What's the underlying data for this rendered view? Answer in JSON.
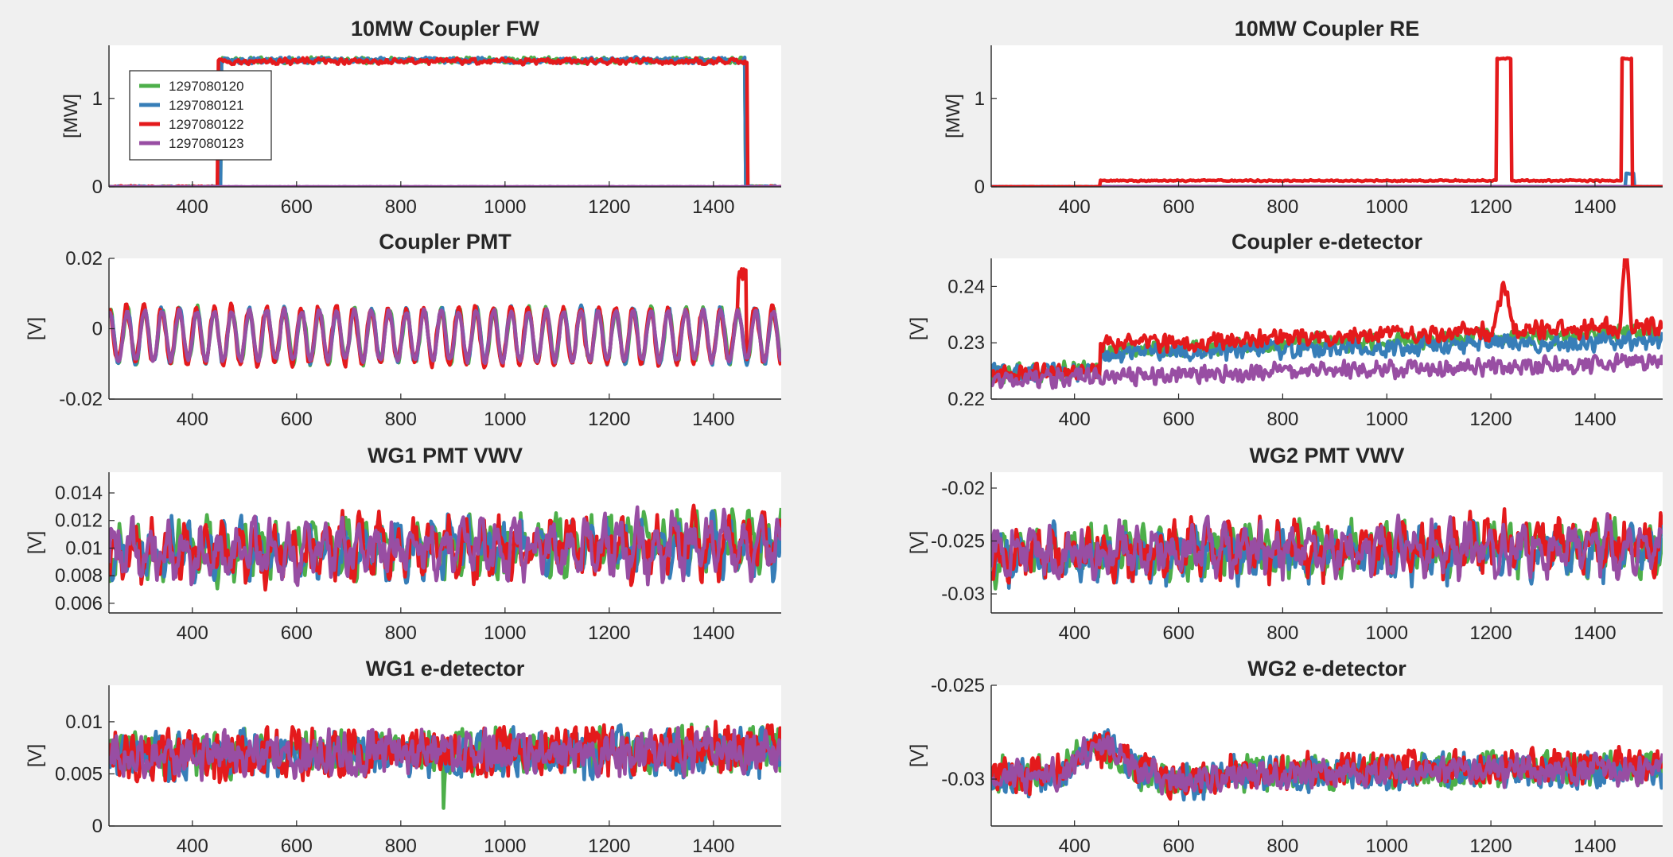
{
  "figure": {
    "colors": {
      "s1297080120": "#4daf4a",
      "s1297080121": "#377eb8",
      "s1297080122": "#e41a1c",
      "s1297080123": "#984ea3"
    }
  },
  "chart_data": [
    {
      "id": "p1",
      "type": "line",
      "title": "10MW Coupler FW",
      "ylabel": "[MW]",
      "xlim": [
        240,
        1530
      ],
      "ylim": [
        0,
        1.6
      ],
      "xticks": [
        400,
        600,
        800,
        1000,
        1200,
        1400
      ],
      "xtick_labels": [
        "400",
        "600",
        "800",
        "1000",
        "1200",
        "1400"
      ],
      "yticks": [
        0,
        1
      ],
      "ytick_labels": [
        "0",
        "1"
      ],
      "grid": false,
      "legend": "top-left",
      "series": [
        {
          "name": "1297080120",
          "color": "#4daf4a",
          "shape": "pulse",
          "params": {
            "x0": 240,
            "x1": 1530,
            "base": 0,
            "pulses": [
              [
                455,
                1460,
                1.43
              ]
            ],
            "noise": 0.04,
            "period": 0
          }
        },
        {
          "name": "1297080121",
          "color": "#377eb8",
          "shape": "pulse",
          "params": {
            "x0": 240,
            "x1": 1530,
            "base": 0,
            "pulses": [
              [
                455,
                1460,
                1.43
              ]
            ],
            "noise": 0.04,
            "period": 0
          }
        },
        {
          "name": "1297080122",
          "color": "#e41a1c",
          "shape": "pulse",
          "params": {
            "x0": 240,
            "x1": 1530,
            "base": 0,
            "pulses": [
              [
                450,
                1465,
                1.42
              ]
            ],
            "noise": 0.04,
            "period": 0
          }
        },
        {
          "name": "1297080123",
          "color": "#984ea3",
          "shape": "pulse",
          "params": {
            "x0": 240,
            "x1": 1530,
            "base": 0,
            "pulses": [],
            "noise": 0.005,
            "period": 0
          }
        }
      ]
    },
    {
      "id": "p2",
      "type": "line",
      "title": "10MW Coupler RE",
      "ylabel": "[MW]",
      "xlim": [
        240,
        1530
      ],
      "ylim": [
        0,
        1.6
      ],
      "xticks": [
        400,
        600,
        800,
        1000,
        1200,
        1400
      ],
      "xtick_labels": [
        "400",
        "600",
        "800",
        "1000",
        "1200",
        "1400"
      ],
      "yticks": [
        0,
        1
      ],
      "ytick_labels": [
        "0",
        "1"
      ],
      "grid": false,
      "series": [
        {
          "name": "1297080120",
          "color": "#4daf4a",
          "shape": "pulse",
          "params": {
            "x0": 240,
            "x1": 1530,
            "base": 0,
            "pulses": [],
            "noise": 0.005,
            "period": 0
          }
        },
        {
          "name": "1297080121",
          "color": "#377eb8",
          "shape": "pulse",
          "params": {
            "x0": 240,
            "x1": 1530,
            "base": 0,
            "pulses": [
              [
                1460,
                1475,
                0.15
              ]
            ],
            "noise": 0.005,
            "period": 0
          }
        },
        {
          "name": "1297080123",
          "color": "#984ea3",
          "shape": "pulse",
          "params": {
            "x0": 240,
            "x1": 1530,
            "base": 0,
            "pulses": [],
            "noise": 0.005,
            "period": 0
          }
        },
        {
          "name": "1297080122",
          "color": "#e41a1c",
          "shape": "pulse",
          "params": {
            "x0": 240,
            "x1": 1530,
            "base": 0,
            "pulses": [
              [
                450,
                1210,
                0.07
              ],
              [
                1212,
                1240,
                1.45
              ],
              [
                1240,
                1452,
                0.07
              ],
              [
                1452,
                1470,
                1.45
              ]
            ],
            "noise": 0.01,
            "period": 0
          }
        }
      ]
    },
    {
      "id": "p3",
      "type": "line",
      "title": "Coupler PMT",
      "ylabel": "[V]",
      "xlim": [
        240,
        1530
      ],
      "ylim": [
        -0.02,
        0.02
      ],
      "xticks": [
        400,
        600,
        800,
        1000,
        1200,
        1400
      ],
      "xtick_labels": [
        "400",
        "600",
        "800",
        "1000",
        "1200",
        "1400"
      ],
      "yticks": [
        -0.02,
        0,
        0.02
      ],
      "ytick_labels": [
        "-0.02",
        "0",
        "0.02"
      ],
      "grid": false,
      "series": [
        {
          "name": "1297080120",
          "color": "#4daf4a",
          "shape": "sine",
          "params": {
            "x0": 240,
            "x1": 1530,
            "mean": -0.002,
            "amp": 0.0075,
            "period": 33.5,
            "phase": 0.2,
            "noise": 0.0015,
            "spikes": []
          }
        },
        {
          "name": "1297080121",
          "color": "#377eb8",
          "shape": "sine",
          "params": {
            "x0": 240,
            "x1": 1530,
            "mean": -0.002,
            "amp": 0.0075,
            "period": 33.5,
            "phase": 0.35,
            "noise": 0.0015,
            "spikes": []
          }
        },
        {
          "name": "1297080122",
          "color": "#e41a1c",
          "shape": "sine",
          "params": {
            "x0": 240,
            "x1": 1530,
            "mean": -0.002,
            "amp": 0.0078,
            "period": 33.5,
            "phase": 0.5,
            "noise": 0.0018,
            "spikes": [
              [
                1448,
                1462,
                0.017
              ]
            ]
          }
        },
        {
          "name": "1297080123",
          "color": "#984ea3",
          "shape": "sine",
          "params": {
            "x0": 240,
            "x1": 1530,
            "mean": -0.002,
            "amp": 0.007,
            "period": 33.5,
            "phase": 0.3,
            "noise": 0.001,
            "spikes": []
          }
        }
      ]
    },
    {
      "id": "p4",
      "type": "line",
      "title": "Coupler e-detector",
      "ylabel": "[V]",
      "xlim": [
        240,
        1530
      ],
      "ylim": [
        0.22,
        0.245
      ],
      "xticks": [
        400,
        600,
        800,
        1000,
        1200,
        1400
      ],
      "xtick_labels": [
        "400",
        "600",
        "800",
        "1000",
        "1200",
        "1400"
      ],
      "yticks": [
        0.22,
        0.23,
        0.24
      ],
      "ytick_labels": [
        "0.22",
        "0.23",
        "0.24"
      ],
      "grid": false,
      "series": [
        {
          "name": "1297080120",
          "color": "#4daf4a",
          "shape": "trend",
          "params": {
            "x0": 240,
            "x1": 1530,
            "y0": 0.2245,
            "y1": 0.2285,
            "step_x": 450,
            "step": 0.0035,
            "noise": 0.0012,
            "period": 0,
            "amp": 0,
            "spikes": []
          }
        },
        {
          "name": "1297080121",
          "color": "#377eb8",
          "shape": "trend",
          "params": {
            "x0": 240,
            "x1": 1530,
            "y0": 0.2245,
            "y1": 0.2275,
            "step_x": 450,
            "step": 0.003,
            "noise": 0.0012,
            "period": 0,
            "amp": 0,
            "spikes": []
          }
        },
        {
          "name": "1297080122",
          "color": "#e41a1c",
          "shape": "trend",
          "params": {
            "x0": 240,
            "x1": 1530,
            "y0": 0.2245,
            "y1": 0.2285,
            "step_x": 450,
            "step": 0.0045,
            "noise": 0.0012,
            "period": 0,
            "amp": 0,
            "spikes": [
              [
                1205,
                1245,
                0.0085
              ],
              [
                1448,
                1470,
                0.016
              ]
            ]
          }
        },
        {
          "name": "1297080123",
          "color": "#984ea3",
          "shape": "trend",
          "params": {
            "x0": 240,
            "x1": 1530,
            "y0": 0.2235,
            "y1": 0.2265,
            "step_x": 0,
            "step": 0,
            "noise": 0.0012,
            "period": 0,
            "amp": 0,
            "spikes": []
          }
        }
      ]
    },
    {
      "id": "p5",
      "type": "line",
      "title": "WG1 PMT VWV",
      "ylabel": "[V]",
      "xlim": [
        240,
        1530
      ],
      "ylim": [
        0.0053,
        0.0155
      ],
      "xticks": [
        400,
        600,
        800,
        1000,
        1200,
        1400
      ],
      "xtick_labels": [
        "400",
        "600",
        "800",
        "1000",
        "1200",
        "1400"
      ],
      "yticks": [
        0.006,
        0.008,
        0.01,
        0.012,
        0.014
      ],
      "ytick_labels": [
        "0.006",
        "0.008",
        "0.01",
        "0.012",
        "0.014"
      ],
      "grid": false,
      "series": [
        {
          "name": "1297080120",
          "color": "#4daf4a",
          "shape": "trend",
          "params": {
            "x0": 240,
            "x1": 1530,
            "y0": 0.0098,
            "y1": 0.0105,
            "step_x": 0,
            "step": 0,
            "noise": 0.0011,
            "period": 33.5,
            "amp": 0.0012,
            "spikes": [
              [
                370,
                380,
                0.004
              ],
              [
                995,
                1000,
                -0.004
              ]
            ]
          }
        },
        {
          "name": "1297080121",
          "color": "#377eb8",
          "shape": "trend",
          "params": {
            "x0": 240,
            "x1": 1530,
            "y0": 0.0096,
            "y1": 0.0102,
            "step_x": 0,
            "step": 0,
            "noise": 0.0011,
            "period": 33.5,
            "amp": 0.0012,
            "spikes": []
          }
        },
        {
          "name": "1297080122",
          "color": "#e41a1c",
          "shape": "trend",
          "params": {
            "x0": 240,
            "x1": 1530,
            "y0": 0.0095,
            "y1": 0.0105,
            "step_x": 0,
            "step": 0,
            "noise": 0.0012,
            "period": 33.5,
            "amp": 0.0012,
            "spikes": []
          }
        },
        {
          "name": "1297080123",
          "color": "#984ea3",
          "shape": "trend",
          "params": {
            "x0": 240,
            "x1": 1530,
            "y0": 0.0097,
            "y1": 0.0103,
            "step_x": 0,
            "step": 0,
            "noise": 0.0011,
            "period": 33.5,
            "amp": 0.0012,
            "spikes": []
          }
        }
      ]
    },
    {
      "id": "p6",
      "type": "line",
      "title": "WG2 PMT VWV",
      "ylabel": "[V]",
      "xlim": [
        240,
        1530
      ],
      "ylim": [
        -0.0318,
        -0.0185
      ],
      "xticks": [
        400,
        600,
        800,
        1000,
        1200,
        1400
      ],
      "xtick_labels": [
        "400",
        "600",
        "800",
        "1000",
        "1200",
        "1400"
      ],
      "yticks": [
        -0.03,
        -0.025,
        -0.02
      ],
      "ytick_labels": [
        "-0.03",
        "-0.025",
        "-0.02"
      ],
      "grid": false,
      "series": [
        {
          "name": "1297080120",
          "color": "#4daf4a",
          "shape": "trend",
          "params": {
            "x0": 240,
            "x1": 1530,
            "y0": -0.0262,
            "y1": -0.0255,
            "step_x": 0,
            "step": 0,
            "noise": 0.0014,
            "period": 33.5,
            "amp": 0.0012,
            "spikes": []
          }
        },
        {
          "name": "1297080121",
          "color": "#377eb8",
          "shape": "trend",
          "params": {
            "x0": 240,
            "x1": 1530,
            "y0": -0.0265,
            "y1": -0.0258,
            "step_x": 0,
            "step": 0,
            "noise": 0.0014,
            "period": 33.5,
            "amp": 0.0012,
            "spikes": []
          }
        },
        {
          "name": "1297080122",
          "color": "#e41a1c",
          "shape": "trend",
          "params": {
            "x0": 240,
            "x1": 1530,
            "y0": -0.0262,
            "y1": -0.0252,
            "step_x": 0,
            "step": 0,
            "noise": 0.0015,
            "period": 33.5,
            "amp": 0.0012,
            "spikes": []
          }
        },
        {
          "name": "1297080123",
          "color": "#984ea3",
          "shape": "trend",
          "params": {
            "x0": 240,
            "x1": 1530,
            "y0": -0.0262,
            "y1": -0.0255,
            "step_x": 0,
            "step": 0,
            "noise": 0.0014,
            "period": 33.5,
            "amp": 0.0012,
            "spikes": []
          }
        }
      ]
    },
    {
      "id": "p7",
      "type": "line",
      "title": "WG1 e-detector",
      "ylabel": "[V]",
      "xlim": [
        240,
        1530
      ],
      "ylim": [
        0,
        0.0135
      ],
      "xticks": [
        400,
        600,
        800,
        1000,
        1200,
        1400
      ],
      "xtick_labels": [
        "400",
        "600",
        "800",
        "1000",
        "1200",
        "1400"
      ],
      "yticks": [
        0,
        0.005,
        0.01
      ],
      "ytick_labels": [
        "0",
        "0.005",
        "0.01"
      ],
      "grid": false,
      "series": [
        {
          "name": "1297080120",
          "color": "#4daf4a",
          "shape": "trend",
          "params": {
            "x0": 240,
            "x1": 1530,
            "y0": 0.0068,
            "y1": 0.0075,
            "step_x": 0,
            "step": 0,
            "noise": 0.0017,
            "period": 0,
            "amp": 0,
            "spikes": [
              [
                880,
                885,
                -0.006
              ]
            ]
          }
        },
        {
          "name": "1297080121",
          "color": "#377eb8",
          "shape": "trend",
          "params": {
            "x0": 240,
            "x1": 1530,
            "y0": 0.0066,
            "y1": 0.0072,
            "step_x": 0,
            "step": 0,
            "noise": 0.0017,
            "period": 0,
            "amp": 0,
            "spikes": []
          }
        },
        {
          "name": "1297080122",
          "color": "#e41a1c",
          "shape": "trend",
          "params": {
            "x0": 240,
            "x1": 1530,
            "y0": 0.0068,
            "y1": 0.0076,
            "step_x": 0,
            "step": 0,
            "noise": 0.0018,
            "period": 0,
            "amp": 0,
            "spikes": []
          }
        },
        {
          "name": "1297080123",
          "color": "#984ea3",
          "shape": "trend",
          "params": {
            "x0": 240,
            "x1": 1530,
            "y0": 0.0067,
            "y1": 0.0072,
            "step_x": 0,
            "step": 0,
            "noise": 0.0016,
            "period": 0,
            "amp": 0,
            "spikes": []
          }
        }
      ]
    },
    {
      "id": "p8",
      "type": "line",
      "title": "WG2 e-detector",
      "ylabel": "[V]",
      "xlim": [
        240,
        1530
      ],
      "ylim": [
        -0.0325,
        -0.025
      ],
      "xticks": [
        400,
        600,
        800,
        1000,
        1200,
        1400
      ],
      "xtick_labels": [
        "400",
        "600",
        "800",
        "1000",
        "1200",
        "1400"
      ],
      "yticks": [
        -0.03,
        -0.025
      ],
      "ytick_labels": [
        "-0.03",
        "-0.025"
      ],
      "grid": false,
      "series": [
        {
          "name": "1297080120",
          "color": "#4daf4a",
          "shape": "hump",
          "params": {
            "x0": 240,
            "x1": 1530,
            "base": -0.0298,
            "hump_x0": 370,
            "hump_x1": 530,
            "hump": 0.0014,
            "dip_x0": 540,
            "dip_x1": 700,
            "dip": -0.0004,
            "end": -0.0294,
            "noise": 0.0007
          }
        },
        {
          "name": "1297080121",
          "color": "#377eb8",
          "shape": "hump",
          "params": {
            "x0": 240,
            "x1": 1530,
            "base": -0.0299,
            "hump_x0": 370,
            "hump_x1": 530,
            "hump": 0.0015,
            "dip_x0": 540,
            "dip_x1": 700,
            "dip": -0.0004,
            "end": -0.0295,
            "noise": 0.0007
          }
        },
        {
          "name": "1297080122",
          "color": "#e41a1c",
          "shape": "hump",
          "params": {
            "x0": 240,
            "x1": 1530,
            "base": -0.0298,
            "hump_x0": 370,
            "hump_x1": 530,
            "hump": 0.0013,
            "dip_x0": 540,
            "dip_x1": 700,
            "dip": -0.0006,
            "end": -0.0292,
            "noise": 0.0007
          }
        },
        {
          "name": "1297080123",
          "color": "#984ea3",
          "shape": "hump",
          "params": {
            "x0": 240,
            "x1": 1530,
            "base": -0.0298,
            "hump_x0": 370,
            "hump_x1": 530,
            "hump": 0.0014,
            "dip_x0": 540,
            "dip_x1": 700,
            "dip": -0.0004,
            "end": -0.0295,
            "noise": 0.0006
          }
        }
      ]
    }
  ]
}
